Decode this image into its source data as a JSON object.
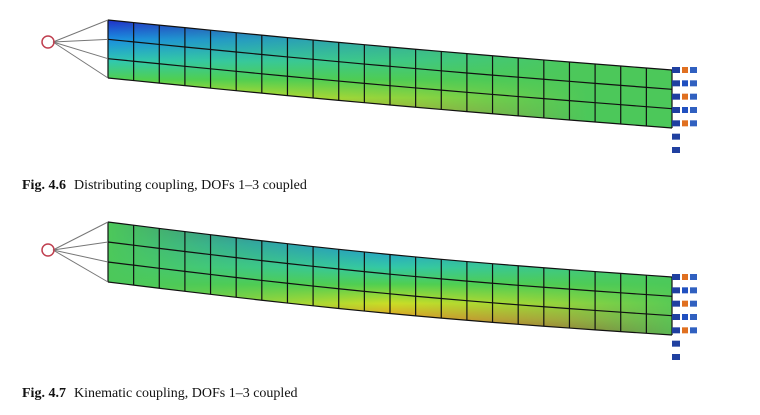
{
  "figures": [
    {
      "label": "Fig. 4.6",
      "caption": "Distributing coupling, DOFs 1–3 coupled"
    },
    {
      "label": "Fig. 4.7",
      "caption": "Kinematic coupling, DOFs 1–3 coupled"
    }
  ]
}
